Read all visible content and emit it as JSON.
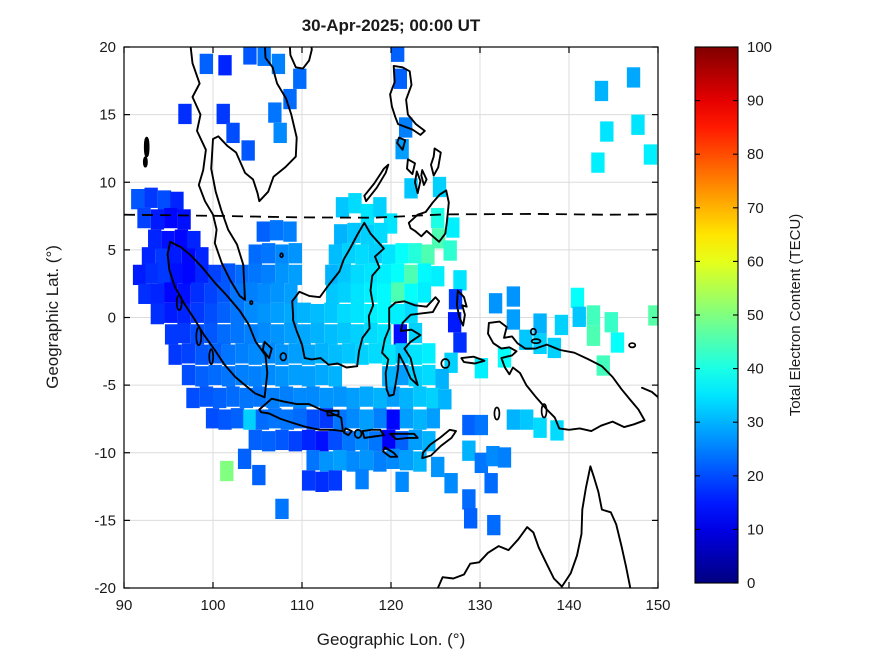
{
  "figure": {
    "title": "30-Apr-2025; 00:00 UT"
  },
  "axes": {
    "xlabel": "Geographic Lon. (°)",
    "ylabel": "Geographic Lat. (°)",
    "xlim": [
      90,
      150
    ],
    "ylim": [
      -20,
      20
    ],
    "xticks": [
      90,
      100,
      110,
      120,
      130,
      140,
      150
    ],
    "yticks": [
      -20,
      -15,
      -10,
      -5,
      0,
      5,
      10,
      15,
      20
    ],
    "grid": true
  },
  "colorbar": {
    "label": "Total Electron Content (TECU)",
    "min": 0,
    "max": 100,
    "ticks": [
      0,
      10,
      20,
      30,
      40,
      50,
      60,
      70,
      80,
      90,
      100
    ],
    "colormap": "jet"
  },
  "chart_data": {
    "type": "heatmap",
    "title": "30-Apr-2025; 00:00 UT",
    "xlabel": "Geographic Lon. (°)",
    "ylabel": "Geographic Lat. (°)",
    "xlim": [
      90,
      150
    ],
    "ylim": [
      -20,
      20
    ],
    "units": "TECU",
    "value_range": [
      0,
      100
    ],
    "cell_size_deg": 1.5,
    "legend_position": "right-colorbar",
    "grid": true,
    "overlays": [
      "southeast-asia-coastlines",
      "dashed-reference-line"
    ],
    "dashed_line_lat_points": [
      [
        90,
        7.6
      ],
      [
        100,
        7.52
      ],
      [
        110,
        7.4
      ],
      [
        118,
        7.38
      ],
      [
        126,
        7.62
      ],
      [
        136,
        7.66
      ],
      [
        144,
        7.6
      ],
      [
        150,
        7.62
      ]
    ],
    "cells": [
      [
        98.5,
        18,
        22
      ],
      [
        100.6,
        17.9,
        16
      ],
      [
        103.4,
        18.7,
        21
      ],
      [
        105,
        18.6,
        24
      ],
      [
        106.6,
        18,
        25
      ],
      [
        109,
        16.9,
        23
      ],
      [
        96.1,
        14.3,
        17
      ],
      [
        100.4,
        14.3,
        18
      ],
      [
        101.5,
        12.9,
        20
      ],
      [
        103.2,
        11.6,
        21
      ],
      [
        106.2,
        14.4,
        24
      ],
      [
        106.8,
        12.9,
        26
      ],
      [
        107.9,
        15.4,
        23
      ],
      [
        142.9,
        16,
        30
      ],
      [
        146.5,
        17,
        29
      ],
      [
        143.5,
        13,
        35
      ],
      [
        147,
        13.5,
        35
      ],
      [
        142.5,
        10.7,
        36
      ],
      [
        148.4,
        11.3,
        36
      ],
      [
        120,
        18.9,
        22
      ],
      [
        120.3,
        16.9,
        22
      ],
      [
        120.9,
        13.3,
        25
      ],
      [
        120.5,
        11.7,
        28
      ],
      [
        121.5,
        8.8,
        32
      ],
      [
        124.7,
        8.9,
        33
      ],
      [
        113.8,
        7.4,
        32
      ],
      [
        115.2,
        7.7,
        34
      ],
      [
        116.6,
        6.9,
        35
      ],
      [
        118,
        7.4,
        33
      ],
      [
        119.2,
        6.2,
        35
      ],
      [
        124.5,
        6.6,
        40
      ],
      [
        124.6,
        5.1,
        45
      ],
      [
        125.9,
        4.2,
        42
      ],
      [
        126.2,
        5.9,
        36
      ],
      [
        90.8,
        8,
        21
      ],
      [
        92.3,
        8.1,
        18
      ],
      [
        93.8,
        7.9,
        20
      ],
      [
        95.2,
        7.8,
        16
      ],
      [
        91.5,
        6.6,
        19
      ],
      [
        93,
        6.5,
        15
      ],
      [
        94.5,
        6.6,
        13
      ],
      [
        96,
        6.5,
        14
      ],
      [
        92.7,
        5,
        16
      ],
      [
        94.2,
        4.9,
        14
      ],
      [
        95.7,
        5,
        13
      ],
      [
        97.1,
        4.9,
        16
      ],
      [
        104.9,
        5.6,
        22
      ],
      [
        106.4,
        5.7,
        24
      ],
      [
        107.9,
        5.6,
        25
      ],
      [
        113.6,
        5.4,
        30
      ],
      [
        115.1,
        5.5,
        32
      ],
      [
        116.6,
        5.4,
        33
      ],
      [
        118.1,
        5.5,
        34
      ],
      [
        92,
        3.7,
        16
      ],
      [
        93.5,
        3.6,
        18
      ],
      [
        95,
        3.7,
        15
      ],
      [
        96.5,
        3.6,
        13
      ],
      [
        98,
        3.7,
        16
      ],
      [
        104,
        3.9,
        23
      ],
      [
        105.5,
        4,
        24
      ],
      [
        107,
        3.9,
        26
      ],
      [
        108.5,
        4,
        27
      ],
      [
        113,
        3.9,
        31
      ],
      [
        114.5,
        4,
        33
      ],
      [
        116,
        3.9,
        34
      ],
      [
        117.5,
        4,
        33
      ],
      [
        119,
        3.9,
        35
      ],
      [
        120.5,
        4,
        38
      ],
      [
        122,
        4,
        41
      ],
      [
        123.4,
        3.9,
        45
      ],
      [
        91,
        2.4,
        15
      ],
      [
        92.4,
        2.5,
        17
      ],
      [
        93.8,
        2.4,
        18
      ],
      [
        95.2,
        2.5,
        14
      ],
      [
        96.6,
        2.4,
        13
      ],
      [
        98,
        2.5,
        16
      ],
      [
        99.5,
        2.4,
        19
      ],
      [
        101,
        2.5,
        21
      ],
      [
        102.5,
        2.4,
        23
      ],
      [
        104,
        2.5,
        24
      ],
      [
        105.5,
        2.4,
        25
      ],
      [
        107,
        2.5,
        27
      ],
      [
        108.5,
        2.4,
        28
      ],
      [
        112.6,
        2.4,
        30
      ],
      [
        114,
        2.5,
        32
      ],
      [
        115.5,
        2.4,
        34
      ],
      [
        117,
        2.5,
        35
      ],
      [
        118.5,
        2.4,
        36
      ],
      [
        120,
        2.5,
        38
      ],
      [
        121.5,
        2.4,
        45
      ],
      [
        123,
        2.5,
        37
      ],
      [
        124.5,
        2.3,
        36
      ],
      [
        127,
        2,
        35
      ],
      [
        91.6,
        1,
        17
      ],
      [
        93,
        1,
        16
      ],
      [
        94.5,
        1.1,
        13
      ],
      [
        96,
        1,
        14
      ],
      [
        97.5,
        1.1,
        17
      ],
      [
        99,
        1,
        19
      ],
      [
        100.5,
        1.1,
        21
      ],
      [
        102,
        1,
        24
      ],
      [
        103.5,
        1.1,
        25
      ],
      [
        105,
        1,
        26
      ],
      [
        106.5,
        1.1,
        27
      ],
      [
        108,
        1,
        28
      ],
      [
        112.7,
        1,
        32
      ],
      [
        114,
        1.1,
        33
      ],
      [
        115.5,
        1,
        35
      ],
      [
        117,
        1.1,
        36
      ],
      [
        118.5,
        1,
        37
      ],
      [
        120,
        1.1,
        45
      ],
      [
        121.5,
        1,
        38
      ],
      [
        123,
        1.1,
        36
      ],
      [
        126.5,
        0.6,
        18
      ],
      [
        131,
        0.3,
        27
      ],
      [
        133,
        0.8,
        27
      ],
      [
        140.2,
        0.7,
        38
      ],
      [
        93,
        -0.5,
        17
      ],
      [
        94.5,
        -0.4,
        15
      ],
      [
        96,
        -0.5,
        16
      ],
      [
        97.5,
        -0.4,
        18
      ],
      [
        99,
        -0.5,
        20
      ],
      [
        100.5,
        -0.4,
        22
      ],
      [
        102,
        -0.5,
        24
      ],
      [
        103.5,
        -0.4,
        26
      ],
      [
        105,
        -0.5,
        27
      ],
      [
        106.5,
        -0.4,
        28
      ],
      [
        108,
        -0.5,
        29
      ],
      [
        109.5,
        -0.4,
        30
      ],
      [
        111,
        -0.5,
        31
      ],
      [
        112.5,
        -0.4,
        32
      ],
      [
        114,
        -0.5,
        34
      ],
      [
        115.5,
        -0.4,
        35
      ],
      [
        117,
        -0.5,
        36
      ],
      [
        118.5,
        -0.4,
        37
      ],
      [
        120,
        -0.5,
        36
      ],
      [
        121.5,
        -0.4,
        34
      ],
      [
        126.4,
        -1.1,
        15
      ],
      [
        133,
        -0.9,
        28
      ],
      [
        136,
        -1.2,
        30
      ],
      [
        138.4,
        -1.3,
        33
      ],
      [
        140.4,
        -0.7,
        32
      ],
      [
        142,
        -0.6,
        44
      ],
      [
        144,
        -1.1,
        43
      ],
      [
        148.9,
        -0.6,
        46
      ],
      [
        94.6,
        -2,
        18
      ],
      [
        96,
        -1.9,
        18
      ],
      [
        97.5,
        -2,
        20
      ],
      [
        99,
        -1.9,
        21
      ],
      [
        100.5,
        -2,
        23
      ],
      [
        102,
        -1.9,
        24
      ],
      [
        103.5,
        -2,
        25
      ],
      [
        105,
        -1.9,
        26
      ],
      [
        106.5,
        -2,
        27
      ],
      [
        108,
        -1.9,
        28
      ],
      [
        109.5,
        -2,
        29
      ],
      [
        111,
        -1.9,
        30
      ],
      [
        112.5,
        -2,
        31
      ],
      [
        114,
        -1.9,
        32
      ],
      [
        115.5,
        -2,
        33
      ],
      [
        117,
        -1.9,
        34
      ],
      [
        118.5,
        -2,
        35
      ],
      [
        120.3,
        -2,
        14
      ],
      [
        122,
        -1.9,
        33
      ],
      [
        127,
        -2.6,
        17
      ],
      [
        134.4,
        -2.4,
        32
      ],
      [
        136,
        -2.7,
        33
      ],
      [
        137.6,
        -3,
        33
      ],
      [
        142,
        -2.1,
        45
      ],
      [
        144.7,
        -2.6,
        38
      ],
      [
        95,
        -3.5,
        18
      ],
      [
        96.5,
        -3.4,
        19
      ],
      [
        98,
        -3.5,
        21
      ],
      [
        99.5,
        -3.4,
        22
      ],
      [
        101,
        -3.5,
        24
      ],
      [
        102.5,
        -3.4,
        25
      ],
      [
        104,
        -3.5,
        26
      ],
      [
        105.5,
        -3.4,
        26
      ],
      [
        107,
        -3.5,
        27
      ],
      [
        108.5,
        -3.4,
        28
      ],
      [
        110,
        -3.5,
        29
      ],
      [
        111.5,
        -3.4,
        30
      ],
      [
        113,
        -3.5,
        31
      ],
      [
        114.5,
        -3.4,
        32
      ],
      [
        116,
        -3.5,
        33
      ],
      [
        117.5,
        -3.4,
        34
      ],
      [
        119,
        -3.5,
        35
      ],
      [
        120.5,
        -3.4,
        32
      ],
      [
        122,
        -3.5,
        35
      ],
      [
        123.5,
        -3.4,
        36
      ],
      [
        126,
        -4.1,
        33
      ],
      [
        129.4,
        -4.5,
        36
      ],
      [
        132,
        -3.7,
        38
      ],
      [
        143.1,
        -4.3,
        44
      ],
      [
        96.5,
        -5,
        20
      ],
      [
        98,
        -5.1,
        22
      ],
      [
        99.5,
        -5,
        23
      ],
      [
        101,
        -5.1,
        24
      ],
      [
        102.5,
        -5,
        25
      ],
      [
        104,
        -5.1,
        25
      ],
      [
        105.5,
        -5,
        26
      ],
      [
        107,
        -5.1,
        27
      ],
      [
        108.5,
        -5,
        28
      ],
      [
        110,
        -5.1,
        28
      ],
      [
        111.5,
        -5,
        29
      ],
      [
        113,
        -5.1,
        30
      ],
      [
        119,
        -5.1,
        30
      ],
      [
        120.5,
        -5,
        28
      ],
      [
        122,
        -5.1,
        33
      ],
      [
        123.5,
        -5,
        34
      ],
      [
        125,
        -5.3,
        30
      ],
      [
        97,
        -6.7,
        20
      ],
      [
        98.5,
        -6.6,
        21
      ],
      [
        100,
        -6.7,
        22
      ],
      [
        101.5,
        -6.6,
        23
      ],
      [
        103,
        -6.7,
        24
      ],
      [
        104.5,
        -6.6,
        24
      ],
      [
        106,
        -6.7,
        25
      ],
      [
        107.5,
        -6.6,
        25
      ],
      [
        109,
        -6.7,
        26
      ],
      [
        110.5,
        -6.6,
        26
      ],
      [
        112,
        -6.7,
        27
      ],
      [
        113.5,
        -6.6,
        27
      ],
      [
        115,
        -6.7,
        28
      ],
      [
        116.5,
        -6.6,
        29
      ],
      [
        118,
        -6.7,
        30
      ],
      [
        119.5,
        -6.6,
        28
      ],
      [
        121,
        -6.7,
        30
      ],
      [
        122.5,
        -6.6,
        32
      ],
      [
        124,
        -6.7,
        33
      ],
      [
        125.3,
        -6.8,
        30
      ],
      [
        99.2,
        -8.2,
        20
      ],
      [
        100.6,
        -8.3,
        21
      ],
      [
        102,
        -8.2,
        22
      ],
      [
        103.4,
        -8.3,
        33
      ],
      [
        104.8,
        -8.3,
        23
      ],
      [
        106.2,
        -8.2,
        24
      ],
      [
        107.6,
        -8.3,
        24
      ],
      [
        109,
        -8.2,
        23
      ],
      [
        110.5,
        -8.3,
        20
      ],
      [
        112,
        -8.2,
        18
      ],
      [
        113.5,
        -8.3,
        24
      ],
      [
        115,
        -8.2,
        26
      ],
      [
        116.5,
        -8.3,
        28
      ],
      [
        118,
        -8.2,
        25
      ],
      [
        119.5,
        -8.3,
        13
      ],
      [
        121,
        -8.2,
        28
      ],
      [
        122.5,
        -8.3,
        30
      ],
      [
        124,
        -8.2,
        28
      ],
      [
        128,
        -8.7,
        22
      ],
      [
        129.4,
        -8.7,
        24
      ],
      [
        133,
        -8.3,
        30
      ],
      [
        134.5,
        -8.3,
        32
      ],
      [
        136,
        -8.9,
        34
      ],
      [
        137.9,
        -9.1,
        34
      ],
      [
        104,
        -9.8,
        22
      ],
      [
        105.5,
        -9.9,
        22
      ],
      [
        107,
        -9.8,
        21
      ],
      [
        108.5,
        -9.9,
        19
      ],
      [
        110,
        -9.8,
        16
      ],
      [
        111.5,
        -9.9,
        14
      ],
      [
        113,
        -9.8,
        20
      ],
      [
        114.5,
        -9.9,
        24
      ],
      [
        116,
        -9.8,
        26
      ],
      [
        117.5,
        -9.9,
        24
      ],
      [
        119,
        -9.8,
        12
      ],
      [
        120.5,
        -9.9,
        22
      ],
      [
        122,
        -9.8,
        28
      ],
      [
        123.5,
        -9.9,
        30
      ],
      [
        128,
        -10.6,
        30
      ],
      [
        110.5,
        -11.3,
        24
      ],
      [
        112,
        -11.4,
        27
      ],
      [
        113.5,
        -11.3,
        28
      ],
      [
        115,
        -11.4,
        26
      ],
      [
        116.5,
        -11.3,
        27
      ],
      [
        118,
        -11.4,
        25
      ],
      [
        119.5,
        -11.2,
        26
      ],
      [
        121,
        -11.3,
        28
      ],
      [
        122.5,
        -11.4,
        30
      ],
      [
        124.5,
        -11.8,
        27
      ],
      [
        102.8,
        -11.2,
        22
      ],
      [
        100.8,
        -12.1,
        50
      ],
      [
        129.4,
        -11.5,
        24
      ],
      [
        130.7,
        -11,
        26
      ],
      [
        132,
        -11.1,
        25
      ],
      [
        104.4,
        -12.4,
        22
      ],
      [
        110,
        -12.8,
        18
      ],
      [
        111.5,
        -12.9,
        17
      ],
      [
        113,
        -12.8,
        18
      ],
      [
        116,
        -12.7,
        25
      ],
      [
        120.5,
        -12.9,
        26
      ],
      [
        126,
        -13,
        26
      ],
      [
        130.5,
        -13,
        23
      ],
      [
        107,
        -14.9,
        24
      ],
      [
        128,
        -14.2,
        23
      ],
      [
        128.2,
        -15.6,
        22
      ],
      [
        130.8,
        -16.1,
        23
      ]
    ]
  }
}
